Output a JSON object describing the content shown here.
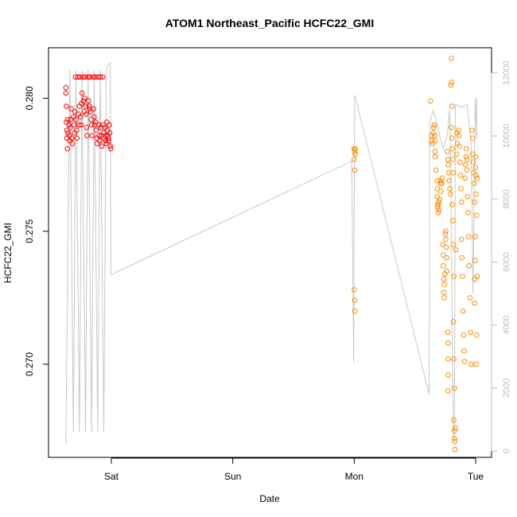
{
  "chart_data": {
    "type": "scatter",
    "title": "ATOM1 Northeast_Pacific HCFC22_GMI",
    "xlabel": "Date",
    "ylabel": "HCFC22_GMI",
    "x_ticks": [
      "Sat",
      "Sun",
      "Mon",
      "Tue"
    ],
    "x_tick_hours": [
      0,
      24,
      48,
      72
    ],
    "xlim_hours": [
      -12,
      74
    ],
    "ylim": [
      0.2665,
      0.2819
    ],
    "y_ticks": [
      0.27,
      0.275,
      0.28
    ],
    "y_tick_labels": [
      "0.270",
      "0.275",
      "0.280"
    ],
    "y2_ticks": [
      0,
      2000,
      4000,
      6000,
      8000,
      10000,
      12000
    ],
    "y2_tick_labels": [
      "0",
      "2000",
      "4000",
      "6000",
      "8000",
      "10000",
      "12000"
    ],
    "y2lim": [
      -200,
      12800
    ],
    "colors": {
      "red": "#ff0000",
      "orange": "#ff8c00",
      "altitude": "#c8c8c8",
      "right_axis": "#bdbdbd"
    },
    "series": [
      {
        "color": "red",
        "points": [
          [
            -9.0,
            0.2804
          ],
          [
            -9.0,
            0.2802
          ],
          [
            -8.9,
            0.2797
          ],
          [
            -8.9,
            0.2791
          ],
          [
            -8.8,
            0.2788
          ],
          [
            -8.8,
            0.2785
          ],
          [
            -8.7,
            0.2781
          ],
          [
            -8.6,
            0.2792
          ],
          [
            -8.6,
            0.2787
          ],
          [
            -8.4,
            0.279
          ],
          [
            -8.3,
            0.2786
          ],
          [
            -8.2,
            0.2784
          ],
          [
            -8.1,
            0.2789
          ],
          [
            -8.0,
            0.2792
          ],
          [
            -7.9,
            0.2796
          ],
          [
            -7.8,
            0.2785
          ],
          [
            -7.7,
            0.2783
          ],
          [
            -7.5,
            0.2793
          ],
          [
            -7.4,
            0.279
          ],
          [
            -7.3,
            0.2787
          ],
          [
            -7.2,
            0.2795
          ],
          [
            -7.1,
            0.2808
          ],
          [
            -7.0,
            0.2792
          ],
          [
            -6.9,
            0.2788
          ],
          [
            -6.8,
            0.2785
          ],
          [
            -6.6,
            0.2808
          ],
          [
            -6.5,
            0.2794
          ],
          [
            -6.4,
            0.279
          ],
          [
            -6.3,
            0.2797
          ],
          [
            -6.2,
            0.2808
          ],
          [
            -6.1,
            0.2793
          ],
          [
            -6.0,
            0.279
          ],
          [
            -5.9,
            0.2798
          ],
          [
            -5.8,
            0.2802
          ],
          [
            -5.6,
            0.2808
          ],
          [
            -5.5,
            0.2799
          ],
          [
            -5.4,
            0.2795
          ],
          [
            -5.3,
            0.28
          ],
          [
            -5.2,
            0.2808
          ],
          [
            -5.1,
            0.2797
          ],
          [
            -5.0,
            0.2794
          ],
          [
            -4.9,
            0.2789
          ],
          [
            -4.8,
            0.2786
          ],
          [
            -4.6,
            0.2808
          ],
          [
            -4.5,
            0.2799
          ],
          [
            -4.4,
            0.2797
          ],
          [
            -4.3,
            0.2796
          ],
          [
            -4.2,
            0.2808
          ],
          [
            -4.1,
            0.2795
          ],
          [
            -4.0,
            0.2792
          ],
          [
            -3.9,
            0.279
          ],
          [
            -3.8,
            0.2786
          ],
          [
            -3.6,
            0.2808
          ],
          [
            -3.5,
            0.2796
          ],
          [
            -3.4,
            0.2793
          ],
          [
            -3.3,
            0.279
          ],
          [
            -3.2,
            0.2808
          ],
          [
            -3.1,
            0.2791
          ],
          [
            -3.0,
            0.2788
          ],
          [
            -2.9,
            0.2785
          ],
          [
            -2.8,
            0.2783
          ],
          [
            -2.6,
            0.2808
          ],
          [
            -2.5,
            0.279
          ],
          [
            -2.4,
            0.2786
          ],
          [
            -2.3,
            0.2784
          ],
          [
            -2.2,
            0.2808
          ],
          [
            -2.1,
            0.2789
          ],
          [
            -2.0,
            0.2786
          ],
          [
            -1.9,
            0.2782
          ],
          [
            -1.7,
            0.2808
          ],
          [
            -1.6,
            0.279
          ],
          [
            -1.5,
            0.2787
          ],
          [
            -1.4,
            0.2785
          ],
          [
            -1.3,
            0.2789
          ],
          [
            -1.2,
            0.2786
          ],
          [
            -1.1,
            0.2784
          ],
          [
            -1.0,
            0.2783
          ],
          [
            -0.9,
            0.2791
          ],
          [
            -0.8,
            0.2788
          ],
          [
            -0.7,
            0.2786
          ],
          [
            -0.6,
            0.2785
          ],
          [
            -0.5,
            0.2784
          ],
          [
            -0.4,
            0.279
          ],
          [
            -0.3,
            0.2787
          ],
          [
            -0.2,
            0.2782
          ],
          [
            -0.1,
            0.2781
          ]
        ]
      },
      {
        "color": "orange",
        "points": [
          [
            48.0,
            0.2781
          ],
          [
            48.1,
            0.278
          ],
          [
            48.2,
            0.2779
          ],
          [
            48.0,
            0.2777
          ],
          [
            48.1,
            0.2773
          ],
          [
            48.2,
            0.2781
          ],
          [
            48.0,
            0.2728
          ],
          [
            48.1,
            0.2724
          ],
          [
            48.1,
            0.272
          ],
          [
            63.1,
            0.2799
          ],
          [
            63.3,
            0.2786
          ],
          [
            63.3,
            0.2784
          ],
          [
            63.5,
            0.2783
          ],
          [
            63.6,
            0.2787
          ],
          [
            63.7,
            0.2789
          ],
          [
            63.8,
            0.279
          ],
          [
            63.9,
            0.2786
          ],
          [
            64.0,
            0.2784
          ],
          [
            64.0,
            0.278
          ],
          [
            64.0,
            0.2778
          ],
          [
            64.2,
            0.2773
          ],
          [
            64.4,
            0.2769
          ],
          [
            64.4,
            0.2766
          ],
          [
            64.4,
            0.2763
          ],
          [
            64.5,
            0.276
          ],
          [
            64.5,
            0.2759
          ],
          [
            64.6,
            0.2757
          ],
          [
            64.6,
            0.276
          ],
          [
            64.7,
            0.2761
          ],
          [
            64.8,
            0.2758
          ],
          [
            64.9,
            0.2762
          ],
          [
            65.0,
            0.2769
          ],
          [
            65.1,
            0.2768
          ],
          [
            65.1,
            0.2765
          ],
          [
            65.3,
            0.2768
          ],
          [
            65.4,
            0.277
          ],
          [
            65.5,
            0.2745
          ],
          [
            65.6,
            0.2741
          ],
          [
            65.6,
            0.2737
          ],
          [
            65.7,
            0.2732
          ],
          [
            65.7,
            0.2727
          ],
          [
            65.8,
            0.2725
          ],
          [
            65.8,
            0.273
          ],
          [
            65.9,
            0.2734
          ],
          [
            66.0,
            0.2749
          ],
          [
            66.1,
            0.275
          ],
          [
            66.1,
            0.2747
          ],
          [
            66.2,
            0.2744
          ],
          [
            66.3,
            0.274
          ],
          [
            66.3,
            0.2735
          ],
          [
            66.5,
            0.2712
          ],
          [
            66.6,
            0.2708
          ],
          [
            66.6,
            0.2702
          ],
          [
            66.6,
            0.2696
          ],
          [
            66.5,
            0.269
          ],
          [
            66.4,
            0.278
          ],
          [
            66.5,
            0.2777
          ],
          [
            66.6,
            0.2775
          ],
          [
            66.7,
            0.2772
          ],
          [
            66.8,
            0.2769
          ],
          [
            66.9,
            0.2766
          ],
          [
            67.0,
            0.2764
          ],
          [
            67.1,
            0.2805
          ],
          [
            67.2,
            0.2815
          ],
          [
            67.3,
            0.2806
          ],
          [
            67.3,
            0.2797
          ],
          [
            67.2,
            0.2789
          ],
          [
            67.3,
            0.2785
          ],
          [
            67.4,
            0.2781
          ],
          [
            67.5,
            0.2777
          ],
          [
            67.6,
            0.2772
          ],
          [
            67.4,
            0.276
          ],
          [
            67.5,
            0.2754
          ],
          [
            67.6,
            0.2745
          ],
          [
            67.7,
            0.2733
          ],
          [
            67.6,
            0.2716
          ],
          [
            67.7,
            0.2702
          ],
          [
            67.8,
            0.2691
          ],
          [
            67.7,
            0.2679
          ],
          [
            67.8,
            0.2675
          ],
          [
            67.8,
            0.2672
          ],
          [
            67.9,
            0.2671
          ],
          [
            67.9,
            0.2668
          ],
          [
            68.0,
            0.2676
          ],
          [
            68.1,
            0.2743
          ],
          [
            68.2,
            0.2779
          ],
          [
            68.3,
            0.2787
          ],
          [
            68.4,
            0.2783
          ],
          [
            68.6,
            0.2788
          ],
          [
            68.7,
            0.2786
          ],
          [
            68.8,
            0.2782
          ],
          [
            68.9,
            0.2776
          ],
          [
            69.0,
            0.2771
          ],
          [
            69.1,
            0.2766
          ],
          [
            69.2,
            0.2761
          ],
          [
            69.2,
            0.2747
          ],
          [
            69.3,
            0.274
          ],
          [
            69.4,
            0.2733
          ],
          [
            69.5,
            0.272
          ],
          [
            69.6,
            0.2711
          ],
          [
            69.7,
            0.2705
          ],
          [
            69.8,
            0.2701
          ],
          [
            69.9,
            0.277
          ],
          [
            70.0,
            0.2775
          ],
          [
            70.1,
            0.2778
          ],
          [
            70.2,
            0.2781
          ],
          [
            70.3,
            0.2777
          ],
          [
            70.3,
            0.2773
          ],
          [
            70.4,
            0.2763
          ],
          [
            70.5,
            0.2757
          ],
          [
            70.6,
            0.2748
          ],
          [
            70.7,
            0.2737
          ],
          [
            70.9,
            0.2725
          ],
          [
            71.0,
            0.2712
          ],
          [
            71.1,
            0.27
          ],
          [
            71.3,
            0.2788
          ],
          [
            71.4,
            0.2785
          ],
          [
            71.4,
            0.2779
          ],
          [
            71.5,
            0.2776
          ],
          [
            71.6,
            0.2772
          ],
          [
            71.7,
            0.2768
          ],
          [
            71.8,
            0.2761
          ],
          [
            71.9,
            0.2748
          ],
          [
            71.9,
            0.2739
          ],
          [
            71.8,
            0.2732
          ],
          [
            71.8,
            0.2723
          ],
          [
            72.0,
            0.2778
          ],
          [
            72.0,
            0.2774
          ],
          [
            72.1,
            0.2771
          ],
          [
            72.1,
            0.2764
          ],
          [
            72.2,
            0.2756
          ],
          [
            72.3,
            0.277
          ],
          [
            72.3,
            0.2733
          ],
          [
            72.2,
            0.2711
          ],
          [
            72.1,
            0.27
          ]
        ]
      }
    ],
    "altitude_line": [
      [
        -9.0,
        200
      ],
      [
        -8.2,
        12100
      ],
      [
        -7.5,
        600
      ],
      [
        -7.0,
        12100
      ],
      [
        -6.3,
        600
      ],
      [
        -5.8,
        12100
      ],
      [
        -5.1,
        600
      ],
      [
        -4.6,
        12100
      ],
      [
        -3.9,
        600
      ],
      [
        -3.4,
        12100
      ],
      [
        -2.7,
        600
      ],
      [
        -2.2,
        12100
      ],
      [
        -1.5,
        600
      ],
      [
        -1.0,
        12100
      ],
      [
        -0.4,
        12300
      ],
      [
        -0.2,
        12300
      ],
      [
        -0.1,
        5600
      ],
      [
        0.0,
        5600
      ],
      [
        47.5,
        9200
      ],
      [
        47.9,
        2800
      ],
      [
        48.0,
        7700
      ],
      [
        48.1,
        11300
      ],
      [
        62.8,
        1800
      ],
      [
        62.9,
        10400
      ],
      [
        63.6,
        10800
      ],
      [
        64.3,
        10500
      ],
      [
        64.9,
        10000
      ],
      [
        65.6,
        9600
      ],
      [
        66.4,
        10000
      ],
      [
        66.8,
        10800
      ],
      [
        67.0,
        10100
      ],
      [
        67.6,
        500
      ],
      [
        67.8,
        400
      ],
      [
        68.0,
        11000
      ],
      [
        69.3,
        10900
      ],
      [
        70.3,
        11000
      ],
      [
        71.1,
        9800
      ],
      [
        71.5,
        5000
      ],
      [
        71.9,
        11200
      ],
      [
        72.2,
        9900
      ],
      [
        72.2,
        11200
      ]
    ]
  }
}
